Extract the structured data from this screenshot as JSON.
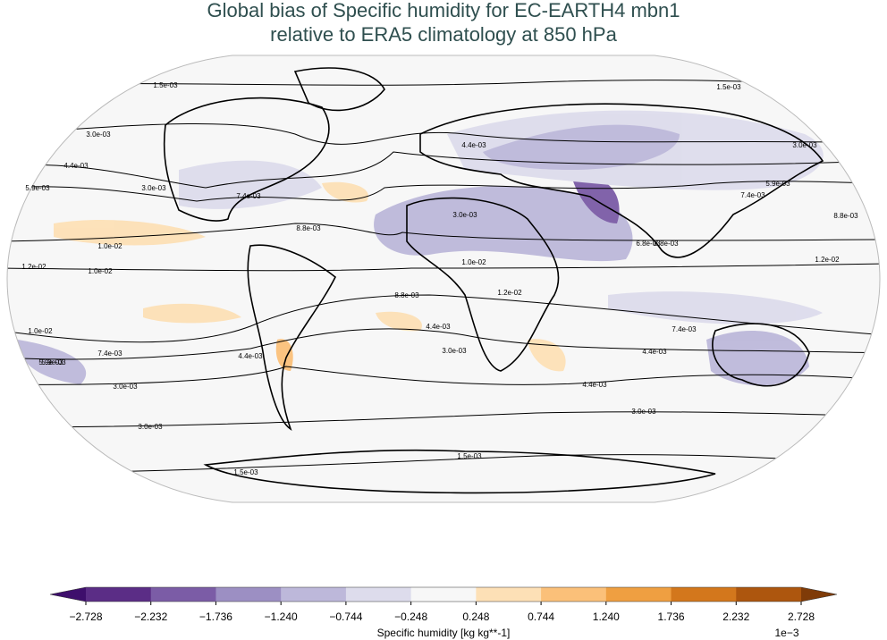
{
  "title": [
    "Global bias of Specific humidity for EC-EARTH4 mbn1",
    "relative to ERA5 climatology at 850 hPa"
  ],
  "contour_labels": [
    "1.5e-03",
    "1.5e-03",
    "3.0e-03",
    "3.0e-03",
    "4.4e-03",
    "4.4e-03",
    "5.9e-03",
    "5.9e-03",
    "3.0e-03",
    "7.4e-03",
    "7.4e-03",
    "8.8e-03",
    "3.0e-03",
    "8.8e-03",
    "1.0e-02",
    "1.2e-02",
    "1.0e-02",
    "1.0e-02",
    "1.2e-02",
    "8.8e-03",
    "1.0e-02",
    "7.4e-03",
    "5.9e-03",
    "4.4e-03",
    "3.0e-03",
    "4.4e-03",
    "3.0e-03",
    "7.4e-03",
    "5.9e-03",
    "4.4e-03",
    "3.0e-03",
    "3.0e-03",
    "1.5e-03",
    "1.5e-03",
    "8.8e-03",
    "1.2e-02",
    "6.8e-03",
    "4.4e-03"
  ],
  "colorbar": {
    "ticks": [
      {
        "value": -2.728,
        "label": "−2.728"
      },
      {
        "value": -2.232,
        "label": "−2.232"
      },
      {
        "value": -1.736,
        "label": "−1.736"
      },
      {
        "value": -1.24,
        "label": "−1.240"
      },
      {
        "value": -0.744,
        "label": "−0.744"
      },
      {
        "value": -0.248,
        "label": "−0.248"
      },
      0.248,
      0.744,
      {
        "value": 1.24,
        "label": "1.240"
      },
      1.736,
      2.232,
      2.728
    ],
    "colors": [
      "#5b2d86",
      "#7b5ca6",
      "#9c8fc3",
      "#bdb8da",
      "#dddcec",
      "#f7f7f7",
      "#fde0b6",
      "#fbc079",
      "#ef9f41",
      "#d3771c",
      "#ad560e"
    ],
    "extend_colors": [
      "#3e0f6c",
      "#7f3b08"
    ],
    "label": "Specific humidity [kg kg**-1]",
    "scale": "1e−3"
  }
}
